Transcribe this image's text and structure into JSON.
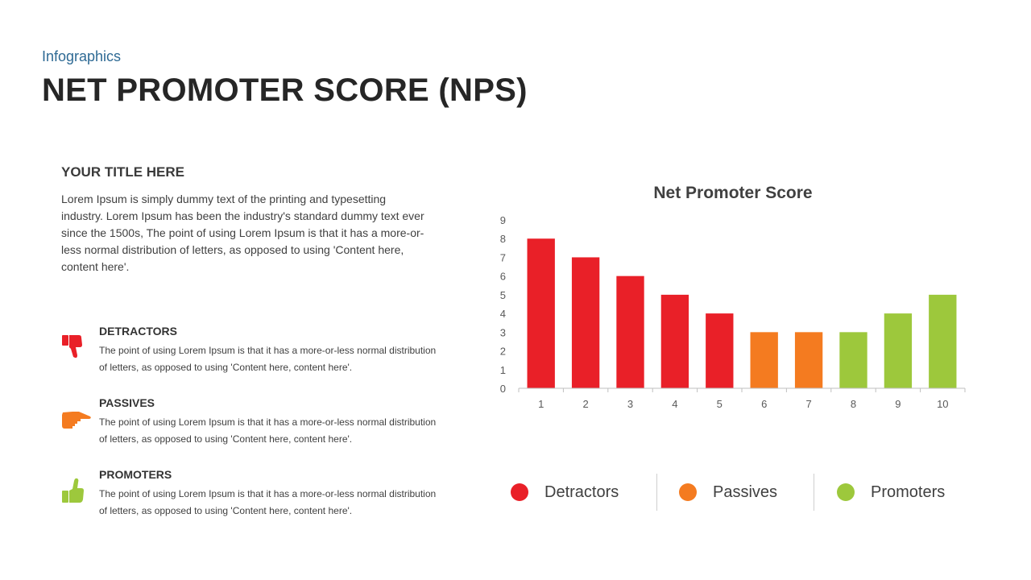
{
  "header": {
    "eyebrow": "Infographics",
    "title": "NET PROMOTER SCORE (NPS)"
  },
  "intro": {
    "title": "YOUR TITLE HERE",
    "text": "Lorem Ipsum is simply dummy text of the printing and typesetting industry. Lorem Ipsum has been the industry's standard dummy text ever since the 1500s, The point of using Lorem Ipsum is that it has a more-or-less normal distribution of letters, as opposed to using 'Content here, content here'."
  },
  "categories": [
    {
      "title": "DETRACTORS",
      "text": "The point of using Lorem Ipsum is that it has a more-or-less normal distribution of letters, as opposed to using 'Content here, content here'.",
      "icon": "thumbs-down-icon",
      "color": "#e92028"
    },
    {
      "title": "PASSIVES",
      "text": "The point of using Lorem Ipsum is that it has a more-or-less normal distribution of letters, as opposed to using 'Content here, content here'.",
      "icon": "pointing-hand-icon",
      "color": "#f47b20"
    },
    {
      "title": "PROMOTERS",
      "text": "The point of using Lorem Ipsum is that it has a more-or-less normal distribution of letters, as opposed to using 'Content here, content here'.",
      "icon": "thumbs-up-icon",
      "color": "#9dc83c"
    }
  ],
  "chart_data": {
    "type": "bar",
    "title": "Net Promoter Score",
    "xlabel": "",
    "ylabel": "",
    "categories": [
      "1",
      "2",
      "3",
      "4",
      "5",
      "6",
      "7",
      "8",
      "9",
      "10"
    ],
    "values": [
      8,
      7,
      6,
      5,
      4,
      3,
      3,
      3,
      4,
      5
    ],
    "bar_colors": [
      "#e92028",
      "#e92028",
      "#e92028",
      "#e92028",
      "#e92028",
      "#f47b20",
      "#f47b20",
      "#9dc83c",
      "#9dc83c",
      "#9dc83c"
    ],
    "ylim": [
      0,
      9
    ],
    "yticks": [
      "0",
      "1",
      "2",
      "3",
      "4",
      "5",
      "6",
      "7",
      "8",
      "9"
    ],
    "grid": false,
    "legend_position": "bottom"
  },
  "legend": [
    {
      "label": "Detractors",
      "color": "#e92028"
    },
    {
      "label": "Passives",
      "color": "#f47b20"
    },
    {
      "label": "Promoters",
      "color": "#9dc83c"
    }
  ]
}
